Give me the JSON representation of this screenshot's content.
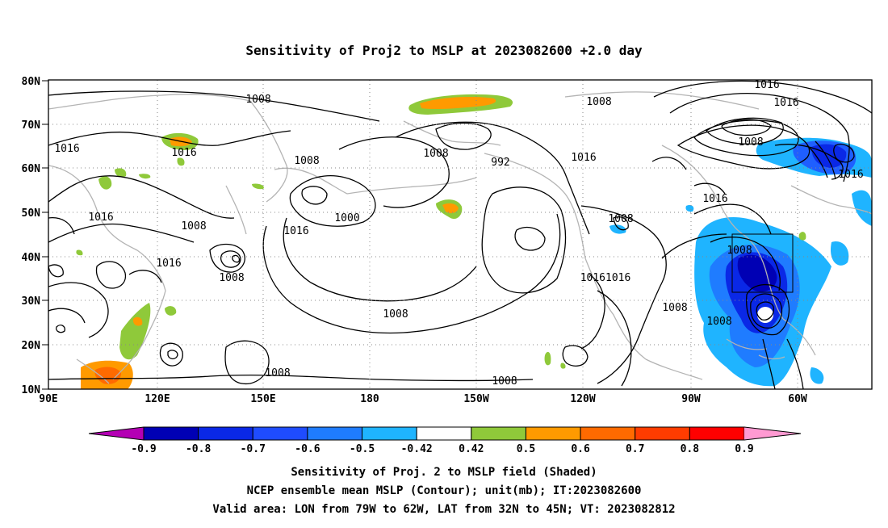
{
  "title": "Sensitivity of Proj2 to MSLP at 2023082600 +2.0 day",
  "map": {
    "lat_ticks": [
      "80N",
      "70N",
      "60N",
      "50N",
      "40N",
      "30N",
      "20N",
      "10N"
    ],
    "lon_ticks": [
      "90E",
      "120E",
      "150E",
      "180",
      "150W",
      "120W",
      "90W",
      "60W"
    ],
    "contour_labels": [
      {
        "text": "1008"
      },
      {
        "text": "1016"
      },
      {
        "text": "1016"
      },
      {
        "text": "1008"
      },
      {
        "text": "1016"
      },
      {
        "text": "1008"
      },
      {
        "text": "1016"
      },
      {
        "text": "1000"
      },
      {
        "text": "1008"
      },
      {
        "text": "992"
      },
      {
        "text": "1016"
      },
      {
        "text": "1008"
      },
      {
        "text": "1016"
      },
      {
        "text": "1016"
      },
      {
        "text": "1008"
      },
      {
        "text": "1016"
      },
      {
        "text": "1016"
      },
      {
        "text": "1008"
      },
      {
        "text": "1008"
      },
      {
        "text": "1016"
      },
      {
        "text": "1008"
      },
      {
        "text": "10161016"
      },
      {
        "text": "1008"
      },
      {
        "text": "1008"
      },
      {
        "text": "1008"
      },
      {
        "text": "1008"
      },
      {
        "text": "1008"
      }
    ],
    "colors": {
      "coast": "#b4b4b4",
      "contour": "#000000",
      "green": "#8fc93a",
      "orange": "#ff9a00",
      "deep_orange": "#ff6a00",
      "light_blue": "#1fb4ff",
      "mid_blue": "#1f5fff",
      "blue": "#0a28e6",
      "dark_blue": "#0000b4"
    }
  },
  "colorbar": {
    "labels": [
      "-0.9",
      "-0.8",
      "-0.7",
      "-0.6",
      "-0.5",
      "-0.42",
      "0.42",
      "0.5",
      "0.6",
      "0.7",
      "0.8",
      "0.9"
    ],
    "colors": [
      "#0000b4",
      "#0a28e6",
      "#1f4cff",
      "#1f7cff",
      "#1fb4ff",
      "#ffffff",
      "#8fc93a",
      "#ff9a00",
      "#ff6a00",
      "#ff3c00",
      "#ff0000"
    ],
    "end_left": "#b400b4",
    "end_right": "#ff9ad2"
  },
  "captions": {
    "line1": "Sensitivity of Proj. 2 to MSLP field (Shaded)",
    "line2": "NCEP ensemble mean MSLP (Contour); unit(mb); IT:2023082600",
    "line3": "Valid area: LON from 79W to 62W, LAT from 32N to 45N; VT: 2023082812"
  }
}
